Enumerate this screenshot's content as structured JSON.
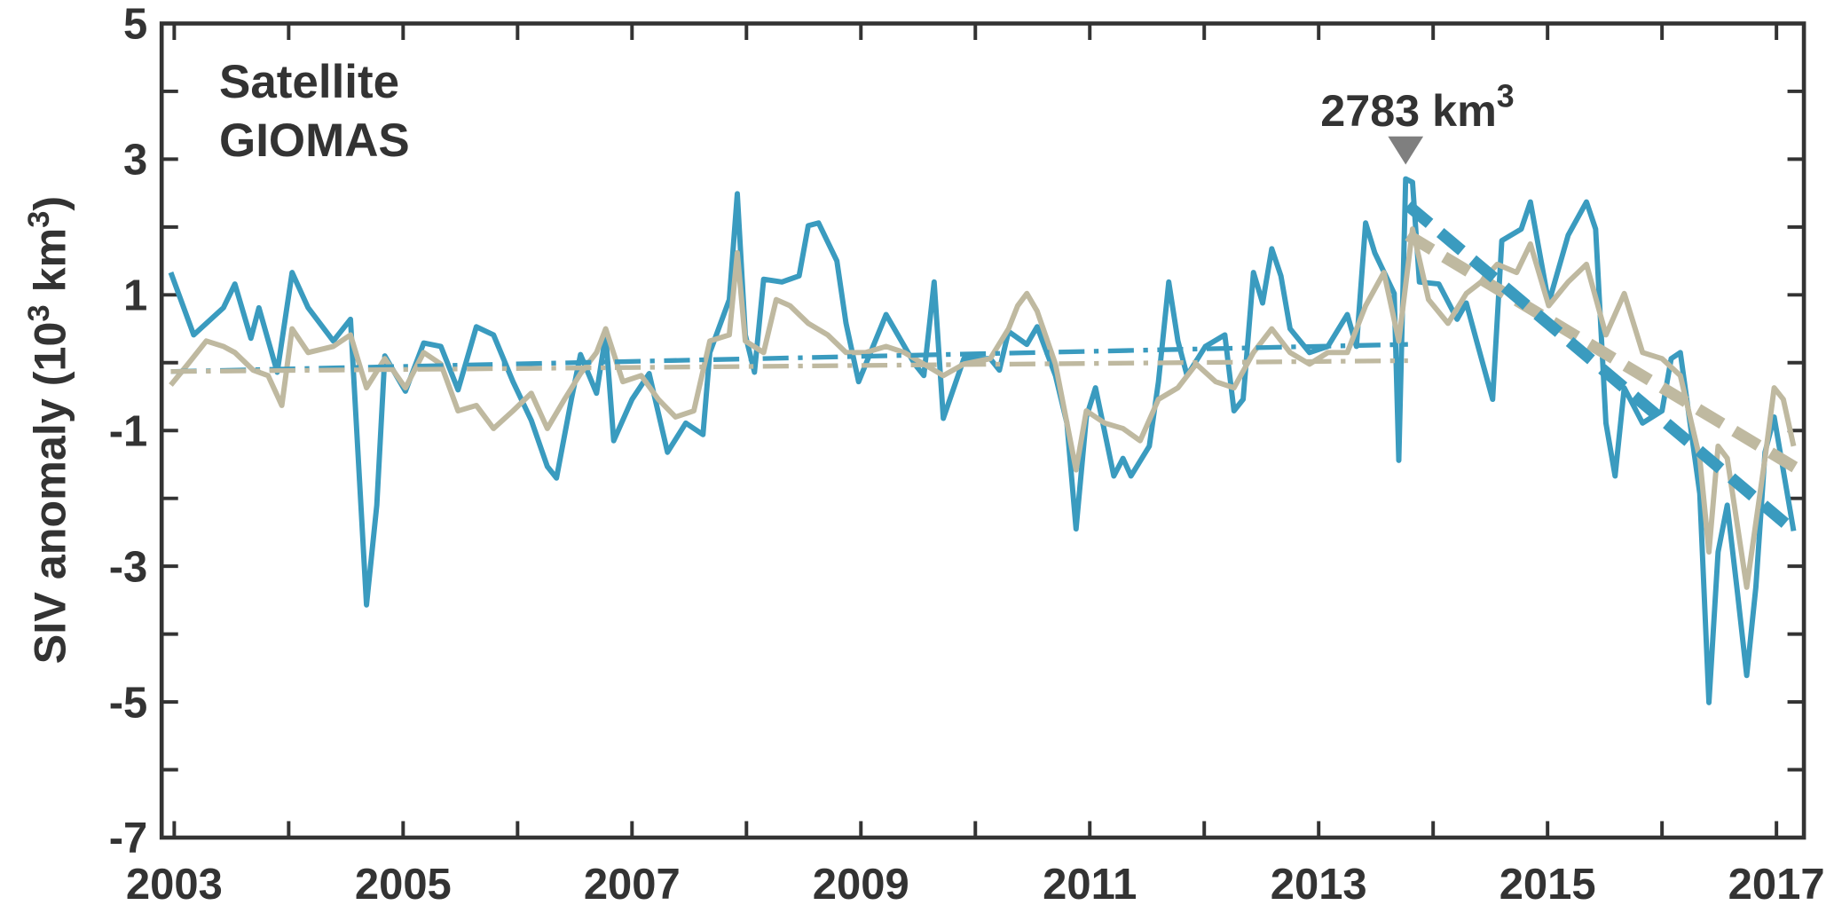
{
  "chart_data": {
    "type": "line",
    "ylabel": [
      "SIV anomaly (10",
      "3",
      " km",
      "3",
      ")"
    ],
    "xlim": [
      2002.89,
      2017.24
    ],
    "ylim": [
      -7,
      5
    ],
    "xticks": [
      2003,
      2005,
      2007,
      2009,
      2011,
      2013,
      2015,
      2017
    ],
    "yticks": [
      5,
      3,
      1,
      -1,
      -3,
      -5,
      -7
    ],
    "minor_ticks": true,
    "box": true,
    "legend": "upper left",
    "series": [
      {
        "name": "Satellite",
        "color": "#3a9bbf",
        "x": [
          2002.97,
          2003.17,
          2003.43,
          2003.53,
          2003.67,
          2003.74,
          2003.9,
          2004.03,
          2004.17,
          2004.39,
          2004.54,
          2004.68,
          2004.77,
          2004.84,
          2005.02,
          2005.18,
          2005.33,
          2005.48,
          2005.64,
          2005.79,
          2005.96,
          2006.12,
          2006.26,
          2006.34,
          2006.47,
          2006.55,
          2006.69,
          2006.77,
          2006.84,
          2007.0,
          2007.15,
          2007.31,
          2007.47,
          2007.62,
          2007.68,
          2007.85,
          2007.92,
          2007.99,
          2008.07,
          2008.15,
          2008.31,
          2008.46,
          2008.54,
          2008.63,
          2008.79,
          2008.87,
          2008.98,
          2009.22,
          2009.47,
          2009.55,
          2009.64,
          2009.72,
          2009.9,
          2010.13,
          2010.21,
          2010.29,
          2010.45,
          2010.54,
          2010.7,
          2010.8,
          2010.88,
          2010.97,
          2011.05,
          2011.21,
          2011.29,
          2011.36,
          2011.52,
          2011.6,
          2011.69,
          2011.77,
          2011.85,
          2012.01,
          2012.18,
          2012.26,
          2012.34,
          2012.43,
          2012.51,
          2012.59,
          2012.67,
          2012.75,
          2012.92,
          2013.08,
          2013.25,
          2013.33,
          2013.41,
          2013.49,
          2013.66,
          2013.7,
          2013.76,
          2013.82,
          2013.88,
          2014.05,
          2014.21,
          2014.29,
          2014.38,
          2014.52,
          2014.6,
          2014.77,
          2014.85,
          2015.01,
          2015.18,
          2015.34,
          2015.42,
          2015.51,
          2015.59,
          2015.67,
          2015.83,
          2016.0,
          2016.08,
          2016.16,
          2016.33,
          2016.41,
          2016.49,
          2016.57,
          2016.66,
          2016.74,
          2016.82,
          2016.9,
          2016.98,
          2017.15
        ],
        "values": [
          1.33,
          0.41,
          0.81,
          1.16,
          0.36,
          0.81,
          -0.14,
          1.33,
          0.81,
          0.32,
          0.64,
          -3.57,
          -2.1,
          0.1,
          -0.42,
          0.29,
          0.24,
          -0.4,
          0.53,
          0.41,
          -0.28,
          -0.85,
          -1.53,
          -1.7,
          -0.54,
          0.12,
          -0.45,
          0.41,
          -1.15,
          -0.54,
          -0.16,
          -1.32,
          -0.89,
          -1.06,
          0.15,
          0.93,
          2.49,
          0.41,
          -0.14,
          1.23,
          1.19,
          1.28,
          2.02,
          2.06,
          1.5,
          0.58,
          -0.28,
          0.71,
          -0.02,
          -0.19,
          1.19,
          -0.82,
          0.06,
          0.06,
          -0.11,
          0.46,
          0.27,
          0.53,
          -0.19,
          -0.89,
          -2.45,
          -0.8,
          -0.37,
          -1.67,
          -1.41,
          -1.67,
          -1.23,
          -0.28,
          1.19,
          0.32,
          -0.19,
          0.24,
          0.41,
          -0.71,
          -0.54,
          1.33,
          0.88,
          1.68,
          1.28,
          0.5,
          0.15,
          0.24,
          0.71,
          0.24,
          2.06,
          1.62,
          1.02,
          -1.44,
          2.71,
          2.66,
          1.19,
          1.16,
          0.64,
          0.88,
          0.32,
          -0.54,
          1.8,
          1.97,
          2.37,
          0.88,
          1.88,
          2.37,
          1.97,
          -0.89,
          -1.67,
          -0.37,
          -0.89,
          -0.71,
          0.06,
          0.15,
          -1.93,
          -5.01,
          -2.79,
          -2.1,
          -3.4,
          -4.61,
          -3.31,
          -1.32,
          -0.8,
          -2.48
        ]
      },
      {
        "name": "GIOMAS",
        "color": "#bfb9a0",
        "x": [
          2002.97,
          2003.12,
          2003.28,
          2003.43,
          2003.53,
          2003.69,
          2003.82,
          2003.94,
          2004.03,
          2004.17,
          2004.39,
          2004.54,
          2004.68,
          2004.84,
          2005.02,
          2005.18,
          2005.33,
          2005.48,
          2005.64,
          2005.79,
          2005.96,
          2006.12,
          2006.26,
          2006.41,
          2006.55,
          2006.69,
          2006.77,
          2006.92,
          2007.08,
          2007.23,
          2007.38,
          2007.54,
          2007.68,
          2007.85,
          2007.92,
          2007.99,
          2008.15,
          2008.26,
          2008.38,
          2008.54,
          2008.71,
          2008.87,
          2009.04,
          2009.22,
          2009.38,
          2009.55,
          2009.72,
          2009.9,
          2010.13,
          2010.29,
          2010.37,
          2010.45,
          2010.54,
          2010.7,
          2010.88,
          2010.97,
          2011.13,
          2011.29,
          2011.44,
          2011.6,
          2011.77,
          2011.93,
          2012.1,
          2012.26,
          2012.43,
          2012.59,
          2012.75,
          2012.92,
          2013.08,
          2013.25,
          2013.41,
          2013.57,
          2013.7,
          2013.82,
          2013.96,
          2014.13,
          2014.29,
          2014.42,
          2014.56,
          2014.73,
          2014.85,
          2015.01,
          2015.18,
          2015.34,
          2015.51,
          2015.67,
          2015.83,
          2016.0,
          2016.16,
          2016.33,
          2016.41,
          2016.49,
          2016.57,
          2016.74,
          2016.9,
          2016.98,
          2017.06,
          2017.15
        ],
        "values": [
          -0.33,
          -0.02,
          0.32,
          0.24,
          0.15,
          -0.11,
          -0.19,
          -0.63,
          0.5,
          0.15,
          0.24,
          0.41,
          -0.37,
          0.06,
          -0.37,
          0.15,
          -0.02,
          -0.71,
          -0.63,
          -0.97,
          -0.71,
          -0.45,
          -0.97,
          -0.54,
          -0.16,
          0.15,
          0.5,
          -0.28,
          -0.19,
          -0.54,
          -0.8,
          -0.71,
          0.32,
          0.41,
          1.62,
          0.32,
          0.15,
          0.93,
          0.84,
          0.58,
          0.41,
          0.15,
          0.15,
          0.24,
          0.15,
          -0.02,
          -0.19,
          -0.02,
          0.06,
          0.5,
          0.84,
          1.02,
          0.76,
          -0.02,
          -1.58,
          -0.71,
          -0.89,
          -0.97,
          -1.15,
          -0.54,
          -0.37,
          -0.02,
          -0.28,
          -0.37,
          0.15,
          0.5,
          0.15,
          -0.02,
          0.15,
          0.15,
          0.84,
          1.33,
          0.32,
          1.97,
          0.93,
          0.58,
          1.02,
          1.19,
          1.45,
          1.33,
          1.75,
          0.84,
          1.19,
          1.45,
          0.41,
          1.02,
          0.15,
          0.06,
          -0.19,
          -1.41,
          -2.79,
          -1.23,
          -1.41,
          -3.31,
          -1.41,
          -0.37,
          -0.54,
          -1.23
        ]
      }
    ],
    "trends": [
      {
        "color": "#3a9bbf",
        "style": "dashdot",
        "x": [
          2002.97,
          2013.78
        ],
        "values": [
          -0.13,
          0.27
        ]
      },
      {
        "color": "#bfb9a0",
        "style": "dashdot",
        "x": [
          2002.97,
          2013.78
        ],
        "values": [
          -0.13,
          0.03
        ]
      },
      {
        "color": "#bfb9a0",
        "style": "dashed",
        "x": [
          2013.78,
          2017.17
        ],
        "values": [
          1.88,
          -1.55
        ]
      },
      {
        "color": "#3a9bbf",
        "style": "dashed",
        "x": [
          2013.78,
          2017.17
        ],
        "values": [
          2.32,
          -2.5
        ]
      }
    ],
    "annotation": {
      "text": "2783 km",
      "superscript": "3",
      "x": 2013.76,
      "y": 2.92,
      "color": "#7f7f7f"
    }
  }
}
